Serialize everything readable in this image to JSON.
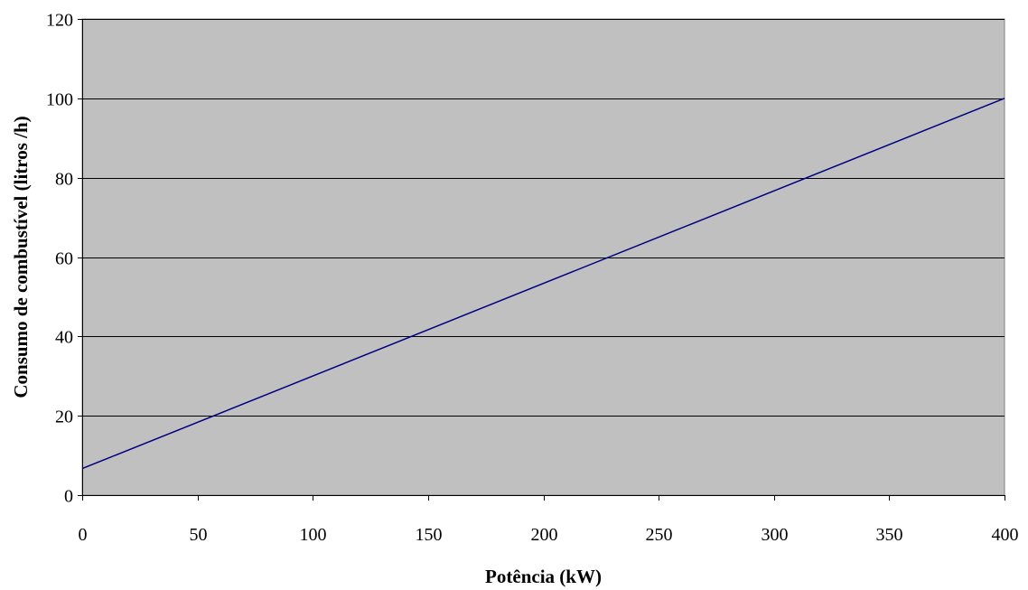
{
  "chart_data": {
    "type": "line",
    "title": "",
    "xlabel": "Potência (kW)",
    "ylabel": "Consumo de combustível (litros /h)",
    "xlim": [
      0,
      400
    ],
    "ylim": [
      0,
      120
    ],
    "xticks": [
      0,
      50,
      100,
      150,
      200,
      250,
      300,
      350,
      400
    ],
    "yticks": [
      0,
      20,
      40,
      60,
      80,
      100,
      120
    ],
    "grid": "horizontal",
    "legend": "none",
    "series": [
      {
        "x": [
          0,
          400
        ],
        "y": [
          6.7,
          100
        ]
      }
    ],
    "colors": {
      "plot_background": "#c0c0c0",
      "line": "#000080",
      "gridline": "#000000"
    }
  }
}
